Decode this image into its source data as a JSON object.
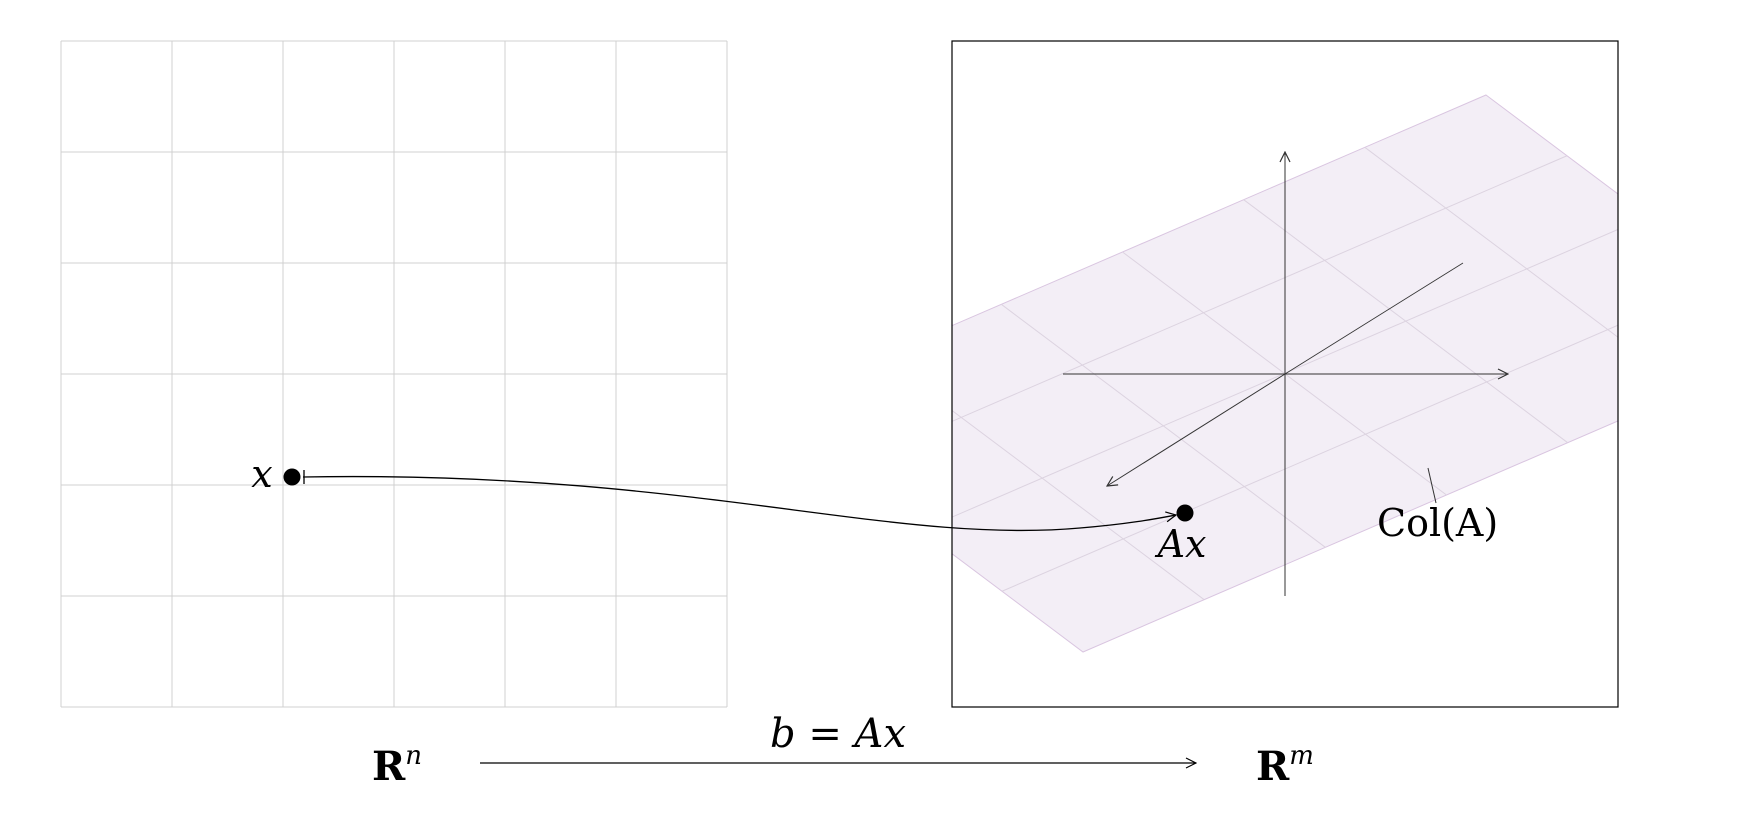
{
  "colors": {
    "grid": "#d0d0d0",
    "frame": "#000000",
    "plane_fill": "#f3eef6",
    "plane_edge": "#d9c5e0",
    "plane_grid": "#dcd3e0",
    "axes": "#333333",
    "point": "#000000"
  },
  "domain": {
    "label": "R",
    "superscript": "n",
    "point_label": "x"
  },
  "codomain": {
    "label": "R",
    "superscript": "m",
    "point_label": "Ax",
    "subspace_label": "Col(A)"
  },
  "transformation": {
    "equation": "b = Ax"
  }
}
